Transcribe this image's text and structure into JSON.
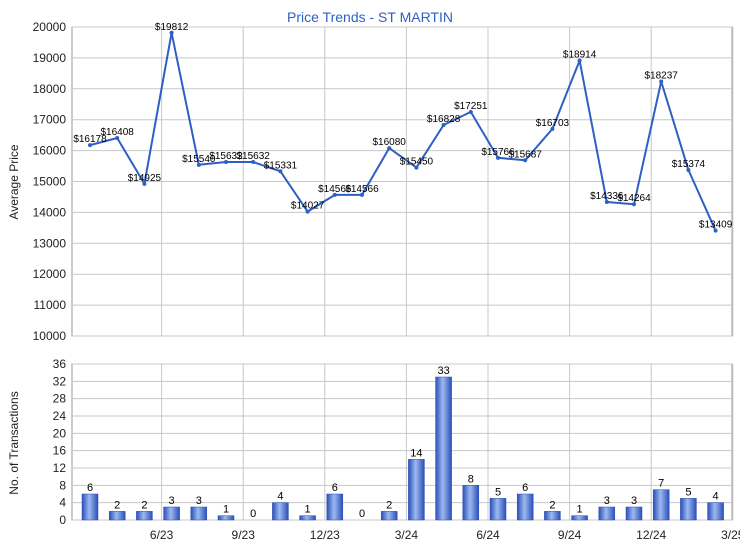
{
  "chart_data": [
    {
      "type": "line",
      "title": "Price Trends - ST MARTIN",
      "ylabel": "Average Price",
      "ylim": [
        10000,
        20000
      ],
      "yticks": [
        10000,
        11000,
        12000,
        13000,
        14000,
        15000,
        16000,
        17000,
        18000,
        19000,
        20000
      ],
      "grid": true,
      "x": [
        "2023-03",
        "2023-04",
        "2023-05",
        "2023-06",
        "2023-07",
        "2023-08",
        "2023-09",
        "2023-10",
        "2023-11",
        "2023-12",
        "2024-01",
        "2024-02",
        "2024-03",
        "2024-04",
        "2024-05",
        "2024-06",
        "2024-07",
        "2024-08",
        "2024-09",
        "2024-10",
        "2024-11",
        "2024-12",
        "2025-01",
        "2025-02",
        "2025-03"
      ],
      "series": [
        {
          "values": [
            16178,
            16408,
            14925,
            19812,
            15540,
            15632,
            15632,
            15331,
            14027,
            14566,
            14566,
            16080,
            15450,
            16828,
            17251,
            15766,
            15687,
            16703,
            18914,
            14336,
            14264,
            18237,
            15374,
            13409,
            null
          ],
          "labels": [
            "$16178",
            "$16408",
            "$14925",
            "$19812",
            "$15540",
            "$15632",
            "$15632",
            "$15331",
            "$14027",
            "$14566",
            "$14566",
            "$16080",
            "$15450",
            "$16828",
            "$17251",
            "$15766",
            "$15687",
            "$16703",
            "$18914",
            "$14336",
            "$14264",
            "$18237",
            "$15374",
            "$13409",
            ""
          ]
        }
      ]
    },
    {
      "type": "bar",
      "ylabel": "No. of Transactions",
      "ylim": [
        0,
        36
      ],
      "yticks": [
        0,
        4,
        8,
        12,
        16,
        20,
        24,
        28,
        32,
        36
      ],
      "grid": true,
      "categories": [
        "2023-03",
        "2023-04",
        "2023-05",
        "2023-06",
        "2023-07",
        "2023-08",
        "2023-09",
        "2023-10",
        "2023-11",
        "2023-12",
        "2024-01",
        "2024-02",
        "2024-03",
        "2024-04",
        "2024-05",
        "2024-06",
        "2024-07",
        "2024-08",
        "2024-09",
        "2024-10",
        "2024-11",
        "2024-12",
        "2025-01",
        "2025-02",
        "2025-03"
      ],
      "values": [
        6,
        2,
        2,
        3,
        3,
        1,
        0,
        4,
        1,
        6,
        0,
        2,
        14,
        33,
        8,
        5,
        6,
        2,
        1,
        3,
        3,
        7,
        5,
        4,
        null
      ],
      "xtick_labels": [
        "6/23",
        "9/23",
        "12/23",
        "3/24",
        "6/24",
        "9/24",
        "12/24",
        "3/25"
      ]
    }
  ],
  "colors": {
    "line": "#2f5fc4",
    "bar_dark": "#2a4fb8",
    "bar_light": "#8fb0ee",
    "title": "#2f5fc4",
    "grid": "#c8c8c8"
  }
}
